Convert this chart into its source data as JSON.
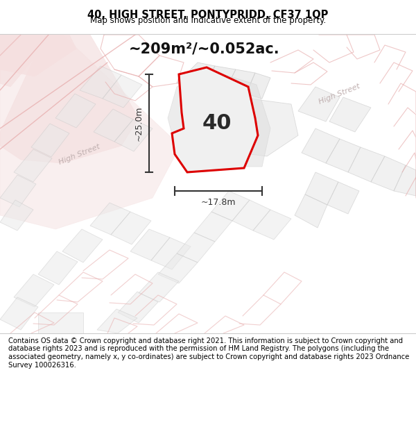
{
  "title_line1": "40, HIGH STREET, PONTYPRIDD, CF37 1QP",
  "title_line2": "Map shows position and indicative extent of the property.",
  "area_text": "~209m²/~0.052ac.",
  "property_number": "40",
  "width_label": "~17.8m",
  "height_label": "~25.0m",
  "footer_text": "Contains OS data © Crown copyright and database right 2021. This information is subject to Crown copyright and database rights 2023 and is reproduced with the permission of HM Land Registry. The polygons (including the associated geometry, namely x, y co-ordinates) are subject to Crown copyright and database rights 2023 Ordnance Survey 100026316.",
  "bg_color": "#ffffff",
  "map_bg": "#ffffff",
  "property_fill": "#f0f0f0",
  "property_edge": "#dd0000",
  "road_fill": "#f5e0e0",
  "road_edge": "#e8b0b0",
  "bld_fill": "#e8e8e8",
  "bld_edge": "#c8c8c8",
  "street_color": "#c0b0b0",
  "dim_color": "#333333",
  "sep_color": "#cccccc"
}
